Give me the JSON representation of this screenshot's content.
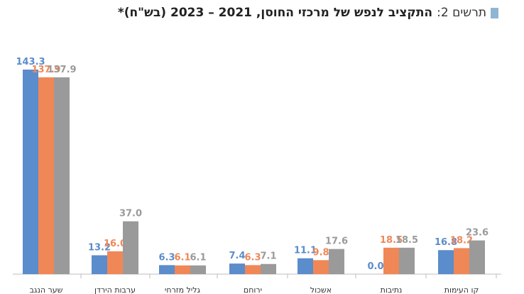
{
  "figure": {
    "label": "תרשים 2:",
    "title": "התקציב לנפש של מרכזי החוסן, 2021 – 2023 (בש\"ח)*"
  },
  "chart_data": {
    "type": "bar",
    "title": "התקציב לנפש של מרכזי החוסן, 2021 – 2023 (בש\"ח)*",
    "categories": [
      "שער הנגב",
      "ערבות הירדן",
      "גליל מזרחי",
      "ירוחם",
      "אשכול",
      "נתיבות",
      "קו העימות"
    ],
    "series": [
      {
        "values": [
          143.3,
          13.2,
          6.3,
          7.4,
          11.1,
          0.0,
          16.8
        ],
        "color": "#5b8ccb"
      },
      {
        "values": [
          137.9,
          16.0,
          6.1,
          6.3,
          9.8,
          18.5,
          18.2
        ],
        "color": "#f08757"
      },
      {
        "values": [
          137.9,
          37.0,
          6.1,
          7.1,
          17.6,
          18.5,
          23.6
        ],
        "color": "#9a9a9a"
      }
    ],
    "ylim": [
      0,
      150
    ],
    "grid": false,
    "legend": "none"
  }
}
